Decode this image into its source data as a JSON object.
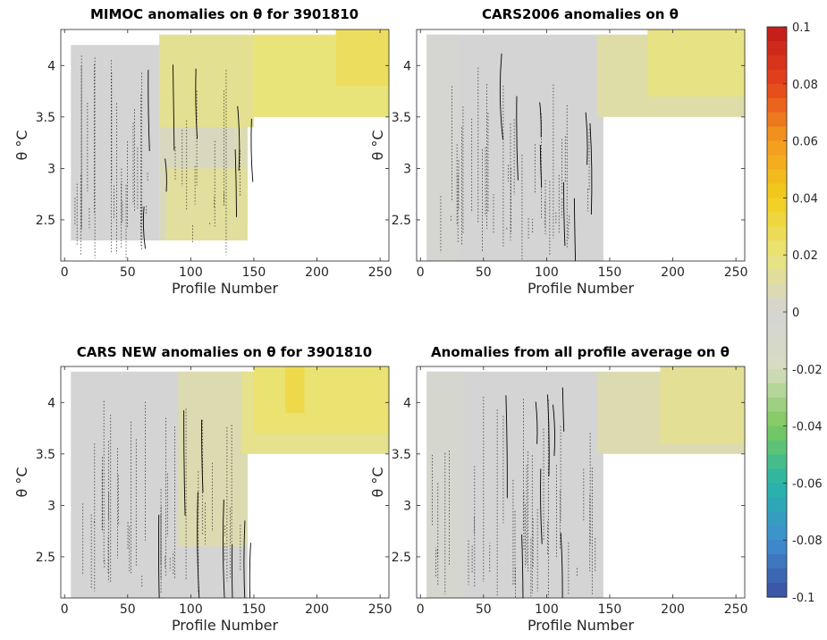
{
  "chart_data": [
    {
      "type": "heatmap",
      "title": "MIMOC anomalies on θ  for 3901810",
      "xlabel": "Profile Number",
      "ylabel": "θ °C",
      "xlim": [
        -3,
        257
      ],
      "ylim": [
        2.1,
        4.35
      ],
      "xticks": [
        0,
        50,
        100,
        150,
        200,
        250
      ],
      "yticks": [
        2.5,
        3,
        3.5,
        4
      ],
      "ytick_labels": [
        "2.5",
        "3",
        "3.5",
        "4"
      ],
      "colorbar_range": [
        -0.1,
        0.1
      ],
      "cells": [
        {
          "x0": 5,
          "x1": 75,
          "y0": 2.3,
          "y1": 4.2,
          "value": 0.0
        },
        {
          "x0": 75,
          "x1": 135,
          "y0": 2.3,
          "y1": 4.2,
          "value": 0.005
        },
        {
          "x0": 135,
          "x1": 145,
          "y0": 2.5,
          "y1": 4.2,
          "value": 0.008
        },
        {
          "x0": 80,
          "x1": 145,
          "y0": 2.3,
          "y1": 3.0,
          "value": 0.012
        },
        {
          "x0": 75,
          "x1": 150,
          "y0": 3.4,
          "y1": 4.3,
          "value": 0.015
        },
        {
          "x0": 150,
          "x1": 257,
          "y0": 3.5,
          "y1": 4.3,
          "value": 0.02
        },
        {
          "x0": 215,
          "x1": 257,
          "y0": 3.8,
          "y1": 4.35,
          "value": 0.026
        }
      ]
    },
    {
      "type": "heatmap",
      "title": "CARS2006 anomalies on θ",
      "xlabel": "Profile Number",
      "ylabel": "θ °C",
      "xlim": [
        -3,
        257
      ],
      "ylim": [
        2.1,
        4.35
      ],
      "xticks": [
        0,
        50,
        100,
        150,
        200,
        250
      ],
      "yticks": [
        2.5,
        3,
        3.5,
        4
      ],
      "ytick_labels": [
        "2.5",
        "3",
        "3.5",
        "4"
      ],
      "colorbar_range": [
        -0.1,
        0.1
      ],
      "cells": [
        {
          "x0": 5,
          "x1": 145,
          "y0": 2.1,
          "y1": 4.3,
          "value": 0.0
        },
        {
          "x0": 5,
          "x1": 30,
          "y0": 2.1,
          "y1": 4.3,
          "value": -0.003
        },
        {
          "x0": 140,
          "x1": 257,
          "y0": 3.5,
          "y1": 4.3,
          "value": 0.01
        },
        {
          "x0": 180,
          "x1": 257,
          "y0": 3.7,
          "y1": 4.35,
          "value": 0.018
        }
      ]
    },
    {
      "type": "heatmap",
      "title": "CARS NEW anomalies on θ for 3901810",
      "xlabel": "Profile Number",
      "ylabel": "θ °C",
      "xlim": [
        -3,
        257
      ],
      "ylim": [
        2.1,
        4.35
      ],
      "xticks": [
        0,
        50,
        100,
        150,
        200,
        250
      ],
      "yticks": [
        2.5,
        3,
        3.5,
        4
      ],
      "ytick_labels": [
        "2.5",
        "3",
        "3.5",
        "4"
      ],
      "colorbar_range": [
        -0.1,
        0.1
      ],
      "cells": [
        {
          "x0": 5,
          "x1": 145,
          "y0": 2.1,
          "y1": 4.3,
          "value": 0.0
        },
        {
          "x0": 90,
          "x1": 145,
          "y0": 2.6,
          "y1": 4.3,
          "value": 0.008
        },
        {
          "x0": 140,
          "x1": 257,
          "y0": 3.5,
          "y1": 4.3,
          "value": 0.016
        },
        {
          "x0": 150,
          "x1": 257,
          "y0": 3.7,
          "y1": 4.35,
          "value": 0.022
        },
        {
          "x0": 175,
          "x1": 190,
          "y0": 3.9,
          "y1": 4.35,
          "value": 0.03
        }
      ]
    },
    {
      "type": "heatmap",
      "title": "Anomalies from all profile average on θ",
      "xlabel": "Profile Number",
      "ylabel": "θ °C",
      "xlim": [
        -3,
        257
      ],
      "ylim": [
        2.1,
        4.35
      ],
      "xticks": [
        0,
        50,
        100,
        150,
        200,
        250
      ],
      "yticks": [
        2.5,
        3,
        3.5,
        4
      ],
      "ytick_labels": [
        "2.5",
        "3",
        "3.5",
        "4"
      ],
      "colorbar_range": [
        -0.1,
        0.1
      ],
      "cells": [
        {
          "x0": 5,
          "x1": 145,
          "y0": 2.1,
          "y1": 4.3,
          "value": 0.0
        },
        {
          "x0": 5,
          "x1": 35,
          "y0": 2.1,
          "y1": 4.3,
          "value": -0.006
        },
        {
          "x0": 140,
          "x1": 257,
          "y0": 3.5,
          "y1": 4.3,
          "value": 0.008
        },
        {
          "x0": 190,
          "x1": 257,
          "y0": 3.6,
          "y1": 4.35,
          "value": 0.014
        }
      ]
    }
  ],
  "colorbar": {
    "range": [
      -0.1,
      0.1
    ],
    "ticks": [
      0.1,
      0.08,
      0.06,
      0.04,
      0.02,
      0,
      -0.02,
      -0.04,
      -0.06,
      -0.08,
      -0.1
    ],
    "tick_labels": [
      "0.1",
      "0.08",
      "0.06",
      "0.04",
      "0.02",
      "0",
      "-0.02",
      "-0.04",
      "-0.06",
      "-0.08",
      "-0.1"
    ],
    "colormap": [
      "#3a4fa0",
      "#3f8fd0",
      "#27b5a8",
      "#7cc95b",
      "#d8dcc0",
      "#d4d4d4",
      "#e9e47a",
      "#f2cd1c",
      "#f39a1f",
      "#e4431c",
      "#c21a1a"
    ]
  },
  "colors": {
    "neutral": "#d4d4d4",
    "contour": "#000000"
  }
}
